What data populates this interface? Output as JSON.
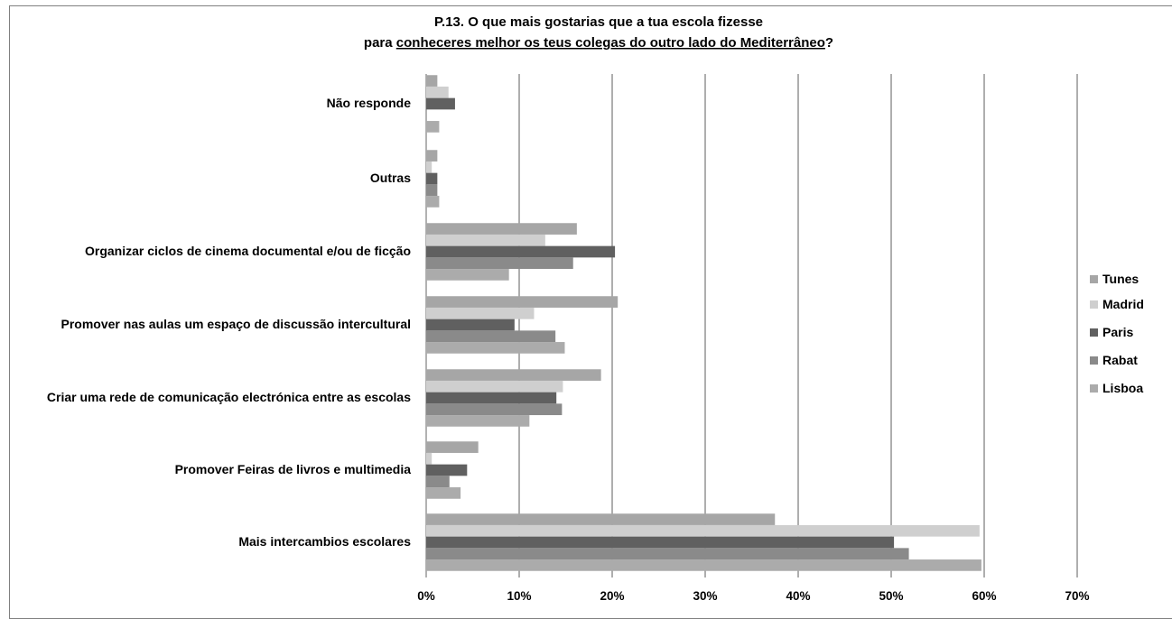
{
  "chart_data": {
    "type": "bar",
    "orientation": "horizontal",
    "title_line1": "P.13. O que mais gostarias que a tua escola fizesse",
    "title_line2_prefix": "para ",
    "title_line2_underlined": "conheceres melhor os teus colegas do outro lado do Mediterrâneo",
    "title_line2_suffix": "?",
    "categories": [
      "Não responde",
      "Outras",
      "Organizar ciclos de cinema documental e/ou de ficção",
      "Promover nas aulas um espaço de discussão intercultural",
      "Criar uma  rede de comunicação electrónica entre as escolas",
      "Promover Feiras de livros e multimedia",
      "Mais intercambios escolares"
    ],
    "series": [
      {
        "name": "Tunes",
        "color": "#a6a6a6",
        "values": [
          1.2,
          1.2,
          16.2,
          20.6,
          18.8,
          5.6,
          37.5
        ]
      },
      {
        "name": "Madrid",
        "color": "#cfcfcf",
        "values": [
          2.4,
          0.6,
          12.8,
          11.6,
          14.7,
          0.6,
          59.5
        ]
      },
      {
        "name": "Paris",
        "color": "#606060",
        "values": [
          3.1,
          1.2,
          20.3,
          9.5,
          14.0,
          4.4,
          50.3
        ]
      },
      {
        "name": "Rabat",
        "color": "#8a8a8a",
        "values": [
          0.0,
          1.2,
          15.8,
          13.9,
          14.6,
          2.5,
          51.9
        ]
      },
      {
        "name": "Lisboa",
        "color": "#ababab",
        "values": [
          1.4,
          1.4,
          8.9,
          14.9,
          11.1,
          3.7,
          59.7
        ]
      }
    ],
    "xlim": [
      0,
      70
    ],
    "xticks": [
      "0%",
      "10%",
      "20%",
      "30%",
      "40%",
      "50%",
      "60%",
      "70%"
    ],
    "grid": true,
    "legend_position": "right"
  }
}
